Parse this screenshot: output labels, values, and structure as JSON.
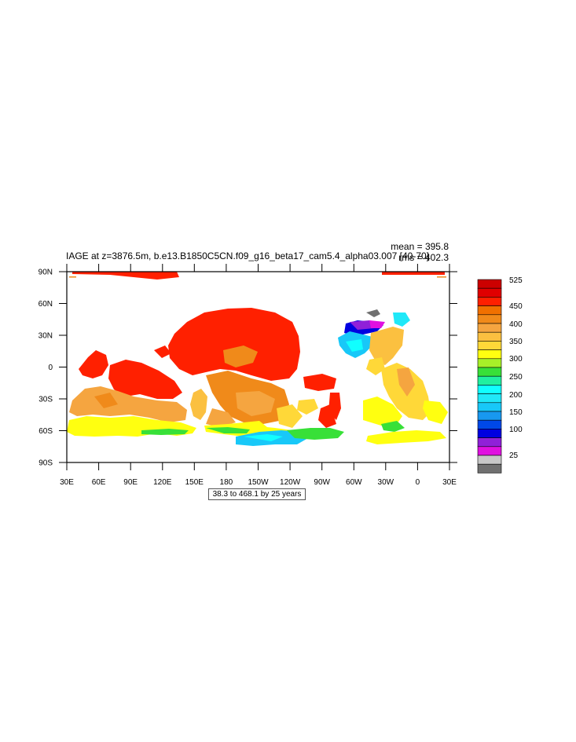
{
  "map": {
    "title": "IAGE at z=3876.5m, b.e13.B1850C5CN.f09_g16_beta17_cam5.4_alpha03.007 [40-70]",
    "stats": {
      "mean": "mean = 395.8",
      "rms": "rms = 402.3"
    },
    "contour_info": "38.3 to 468.1 by 25 years",
    "lat_ticks": [
      "90N",
      "60N",
      "30N",
      "0",
      "30S",
      "60S",
      "90S"
    ],
    "lon_ticks": [
      "30E",
      "60E",
      "90E",
      "120E",
      "150E",
      "180",
      "150W",
      "120W",
      "90W",
      "60W",
      "30W",
      "0",
      "30E"
    ],
    "colorbar": {
      "labels": [
        "525",
        "450",
        "400",
        "350",
        "300",
        "250",
        "200",
        "150",
        "100",
        "25"
      ],
      "colors": [
        "#CC0000",
        "#E00000",
        "#FF2000",
        "#F07000",
        "#F08A1A",
        "#F5A540",
        "#FBC040",
        "#FFD838",
        "#FFFF10",
        "#A8F028",
        "#38E038",
        "#20F0A0",
        "#10FFFF",
        "#20E8F8",
        "#18C8F8",
        "#1898F0",
        "#0048E8",
        "#0000E0",
        "#9020D8",
        "#E010E0",
        "#C8C8C8",
        "#707070"
      ]
    }
  }
}
